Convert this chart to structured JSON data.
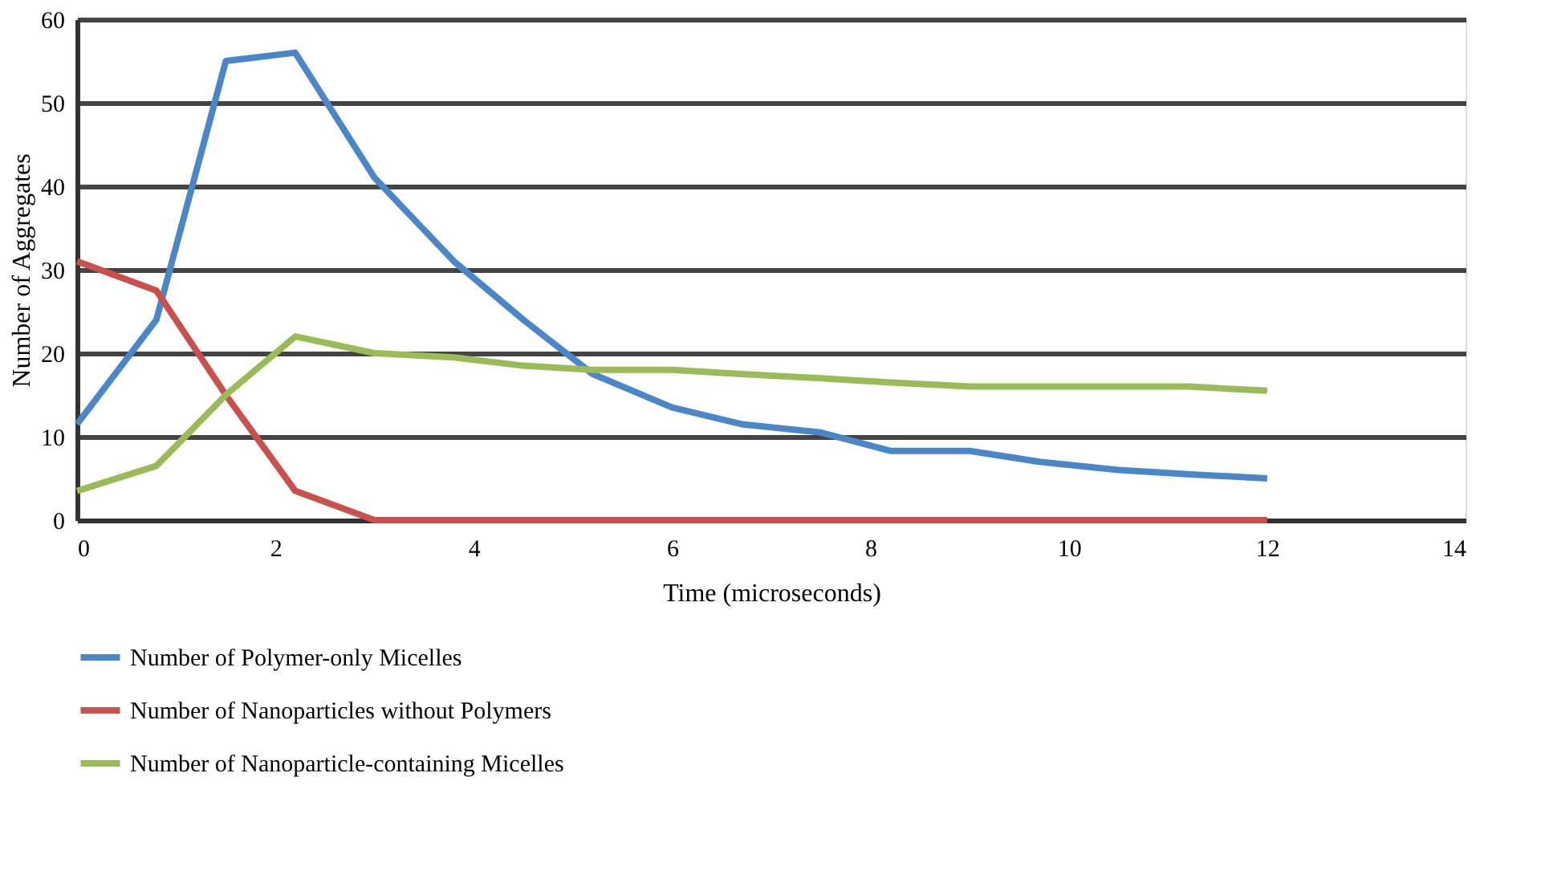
{
  "chart_data": {
    "type": "line",
    "xlabel": "Time (microseconds)",
    "ylabel": "Number of Aggregates",
    "xlim": [
      0,
      14
    ],
    "xticks": [
      0,
      2,
      4,
      6,
      8,
      10,
      12,
      14
    ],
    "ylim": [
      0,
      60
    ],
    "yticks": [
      0,
      10,
      20,
      30,
      40,
      50,
      60
    ],
    "grid": "y",
    "legend": "bottom",
    "marker": "none",
    "line_style": "solid",
    "series": [
      {
        "name": "Number of Polymer-only Micelles",
        "color": "#4a86c8",
        "x": [
          0,
          0.8,
          1.5,
          2.2,
          3,
          3.8,
          4.5,
          5.2,
          6,
          6.7,
          7.5,
          8.2,
          9,
          9.7,
          10.5,
          11.2,
          12
        ],
        "values": [
          11.5,
          24,
          55,
          56,
          41,
          31,
          24,
          17.5,
          13.5,
          11.5,
          10.5,
          8.3,
          8.3,
          7,
          6,
          5.5,
          5
        ]
      },
      {
        "name": "Number of Nanoparticles without Polymers",
        "color": "#c9504c",
        "x": [
          0,
          0.8,
          1.5,
          2.2,
          3,
          12
        ],
        "values": [
          31,
          27.5,
          15,
          3.5,
          0,
          0
        ]
      },
      {
        "name": "Number of Nanoparticle-containing Micelles",
        "color": "#9bbb59",
        "x": [
          0,
          0.8,
          1.5,
          2.2,
          3,
          3.8,
          4.5,
          5.2,
          6,
          6.7,
          7.5,
          8.2,
          9,
          9.7,
          10.5,
          11.2,
          12
        ],
        "values": [
          3.5,
          6.5,
          15,
          22,
          20,
          19.5,
          18.5,
          18,
          18,
          17.5,
          17,
          16.5,
          16,
          16,
          16,
          16,
          15.5
        ]
      }
    ]
  }
}
